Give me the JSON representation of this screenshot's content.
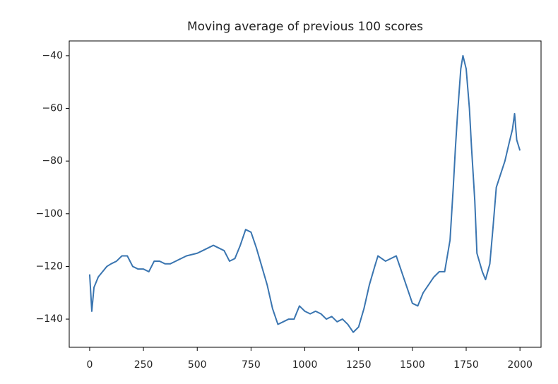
{
  "chart_data": {
    "type": "line",
    "title": "Moving average of previous 100 scores",
    "x": [
      0,
      5,
      10,
      20,
      40,
      60,
      80,
      100,
      125,
      150,
      175,
      200,
      225,
      250,
      275,
      300,
      325,
      350,
      375,
      400,
      425,
      450,
      500,
      525,
      550,
      575,
      600,
      625,
      650,
      675,
      700,
      725,
      750,
      775,
      800,
      825,
      850,
      875,
      900,
      925,
      950,
      975,
      1000,
      1025,
      1050,
      1075,
      1100,
      1125,
      1150,
      1175,
      1200,
      1225,
      1250,
      1275,
      1300,
      1325,
      1340,
      1375,
      1400,
      1425,
      1450,
      1475,
      1500,
      1525,
      1550,
      1575,
      1600,
      1625,
      1650,
      1675,
      1690,
      1700,
      1710,
      1725,
      1735,
      1750,
      1765,
      1775,
      1790,
      1800,
      1825,
      1840,
      1860,
      1875,
      1890,
      1910,
      1930,
      1950,
      1965,
      1975,
      1985,
      2000
    ],
    "series": [
      {
        "color": "#3a75b0",
        "values": [
          -123,
          -130,
          -137,
          -128,
          -124,
          -122,
          -120,
          -119,
          -118,
          -116,
          -116,
          -120,
          -121,
          -121,
          -122,
          -118,
          -118,
          -119,
          -119,
          -118,
          -117,
          -116,
          -115,
          -114,
          -113,
          -112,
          -113,
          -114,
          -118,
          -117,
          -112,
          -106,
          -107,
          -113,
          -120,
          -127,
          -136,
          -142,
          -141,
          -140,
          -140,
          -135,
          -137,
          -138,
          -137,
          -138,
          -140,
          -139,
          -141,
          -140,
          -142,
          -145,
          -143,
          -136,
          -127,
          -120,
          -116,
          -118,
          -117,
          -116,
          -122,
          -128,
          -134,
          -135,
          -130,
          -127,
          -124,
          -122,
          -122,
          -110,
          -90,
          -75,
          -62,
          -45,
          -40,
          -45,
          -60,
          -75,
          -95,
          -115,
          -122,
          -125,
          -119,
          -105,
          -90,
          -85,
          -80,
          -73,
          -68,
          -62,
          -72,
          -76
        ]
      }
    ],
    "xlim": [
      -95,
      2098
    ],
    "ylim": [
      -150.7,
      -34.4
    ],
    "xticks": [
      0,
      250,
      500,
      750,
      1000,
      1250,
      1500,
      1750,
      2000
    ],
    "yticks": [
      {
        "value": -140,
        "label": "−140"
      },
      {
        "value": -120,
        "label": "−120"
      },
      {
        "value": -100,
        "label": "−100"
      },
      {
        "value": -80,
        "label": "−80"
      },
      {
        "value": -60,
        "label": "−60"
      },
      {
        "value": -40,
        "label": "−40"
      }
    ]
  }
}
